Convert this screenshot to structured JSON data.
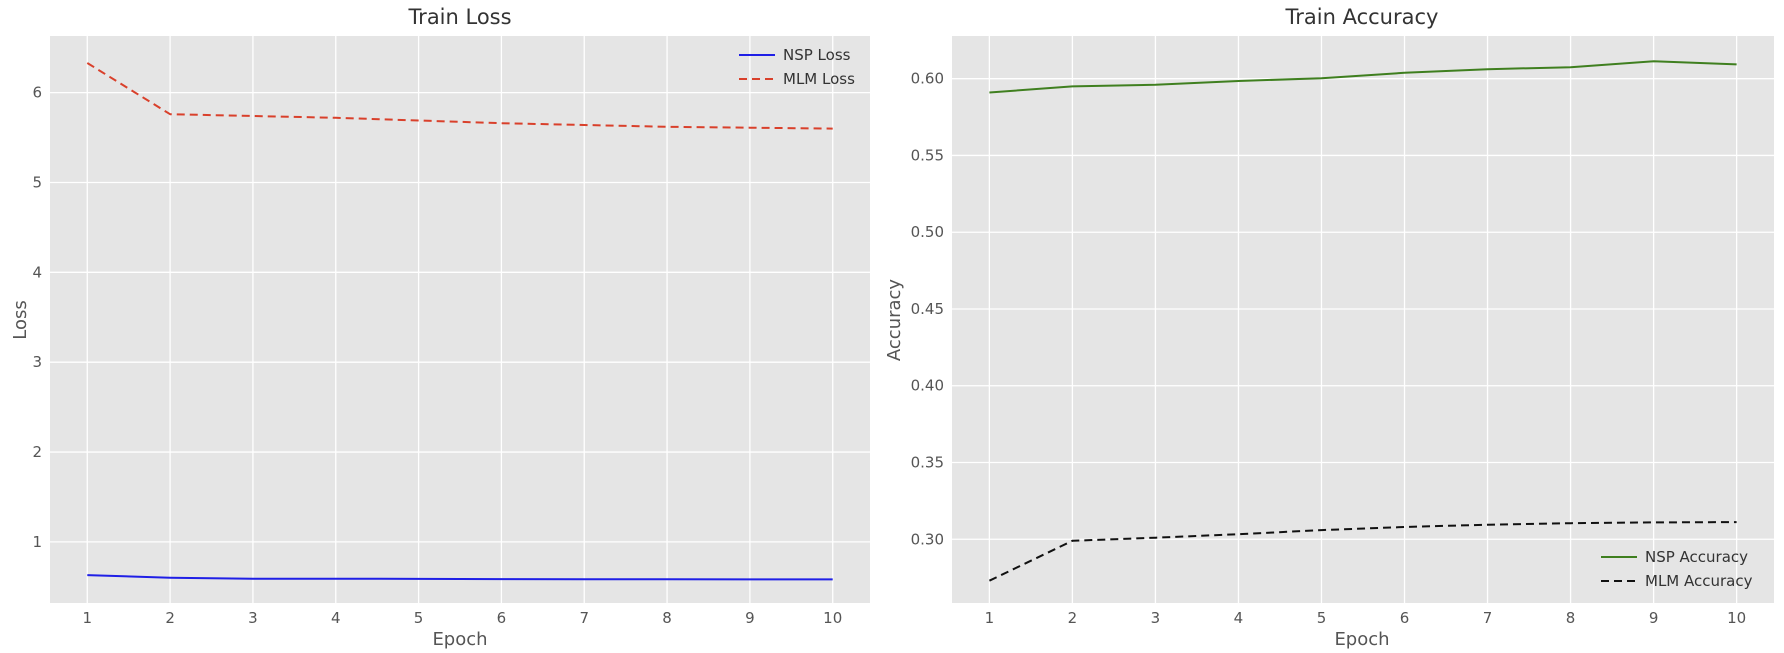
{
  "chart_data": [
    {
      "type": "line",
      "title": "Train Loss",
      "xlabel": "Epoch",
      "ylabel": "Loss",
      "x": [
        1,
        2,
        3,
        4,
        5,
        6,
        7,
        8,
        9,
        10
      ],
      "xticks": [
        1,
        2,
        3,
        4,
        5,
        6,
        7,
        8,
        9,
        10
      ],
      "xlim": [
        0.55,
        10.45
      ],
      "yticks": [
        1,
        2,
        3,
        4,
        5,
        6
      ],
      "ylim": [
        0.32,
        6.63
      ],
      "grid": true,
      "legend_position": "top-right",
      "series": [
        {
          "name": "NSP Loss",
          "values": [
            0.63,
            0.6,
            0.59,
            0.59,
            0.588,
            0.586,
            0.585,
            0.584,
            0.583,
            0.583
          ],
          "color": "#1f1fe6",
          "linestyle": "solid"
        },
        {
          "name": "MLM Loss",
          "values": [
            6.33,
            5.76,
            5.74,
            5.72,
            5.69,
            5.66,
            5.64,
            5.62,
            5.61,
            5.6
          ],
          "color": "#d9402b",
          "linestyle": "dashed"
        }
      ]
    },
    {
      "type": "line",
      "title": "Train Accuracy",
      "xlabel": "Epoch",
      "ylabel": "Accuracy",
      "x": [
        1,
        2,
        3,
        4,
        5,
        6,
        7,
        8,
        9,
        10
      ],
      "xticks": [
        1,
        2,
        3,
        4,
        5,
        6,
        7,
        8,
        9,
        10
      ],
      "xlim": [
        0.55,
        10.45
      ],
      "yticks": [
        0.3,
        0.35,
        0.4,
        0.45,
        0.5,
        0.55,
        0.6
      ],
      "ylim": [
        0.2585,
        0.6278
      ],
      "grid": true,
      "legend_position": "bottom-right",
      "series": [
        {
          "name": "NSP Accuracy",
          "values": [
            0.591,
            0.595,
            0.596,
            0.5985,
            0.6003,
            0.6038,
            0.6062,
            0.6075,
            0.6113,
            0.6093
          ],
          "color": "#3f7f1f",
          "linestyle": "solid"
        },
        {
          "name": "MLM Accuracy",
          "values": [
            0.273,
            0.299,
            0.301,
            0.3033,
            0.306,
            0.308,
            0.3095,
            0.3105,
            0.311,
            0.3112
          ],
          "color": "#111111",
          "linestyle": "dashed"
        }
      ]
    }
  ]
}
